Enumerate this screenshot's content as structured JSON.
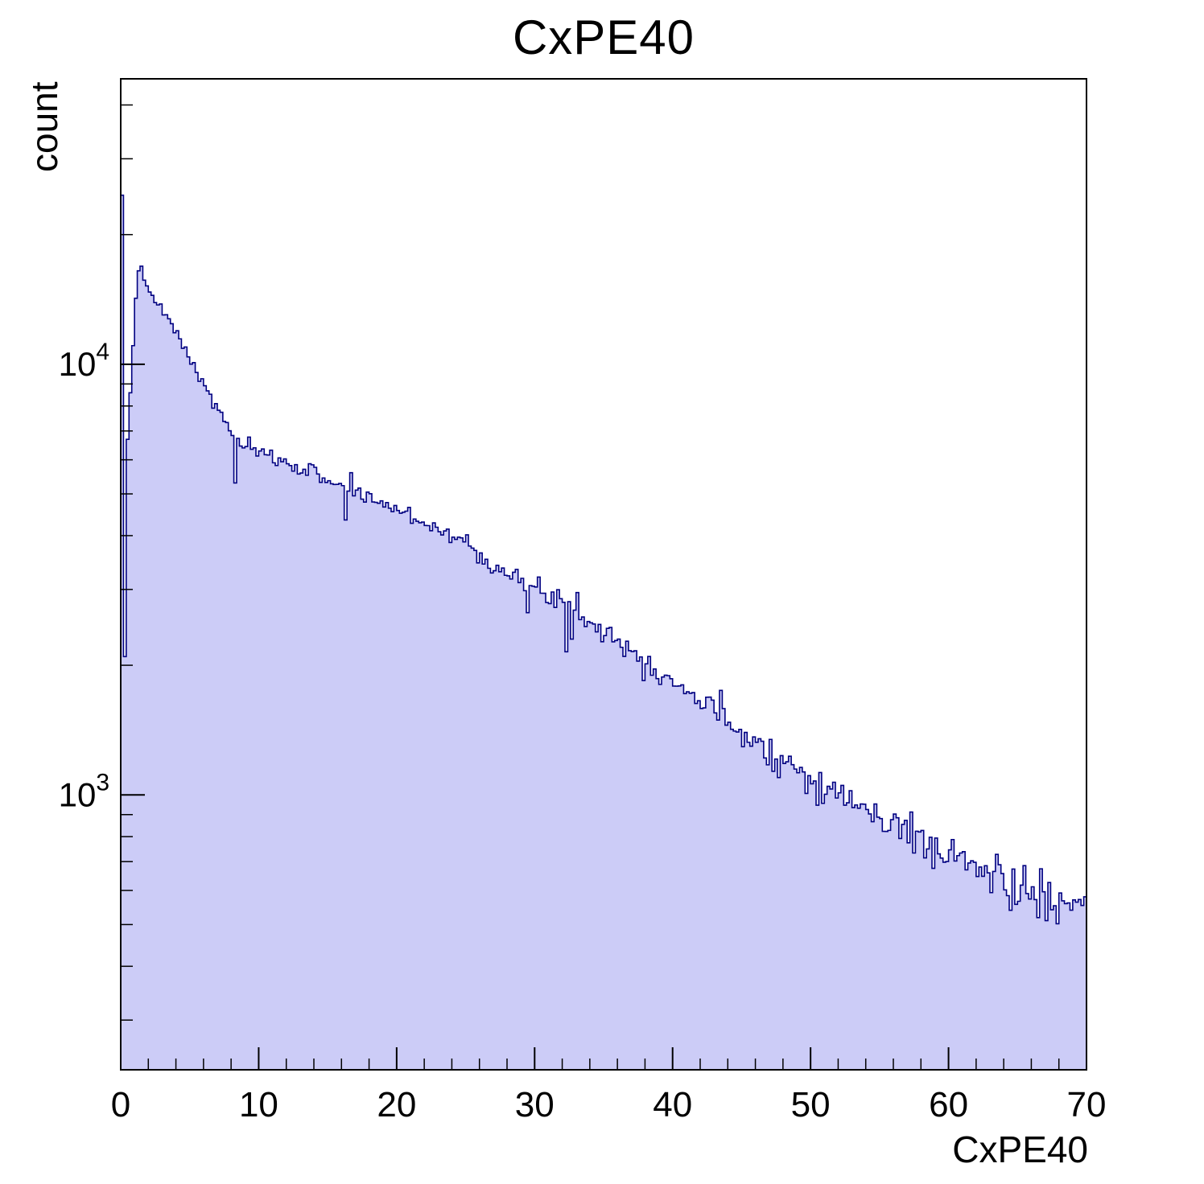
{
  "title": "CxPE40",
  "axes": {
    "x": {
      "label": "CxPE40",
      "min": 0,
      "max": 70,
      "major_ticks": [
        {
          "value": 0,
          "label": "0"
        },
        {
          "value": 10,
          "label": "10"
        },
        {
          "value": 20,
          "label": "20"
        },
        {
          "value": 30,
          "label": "30"
        },
        {
          "value": 40,
          "label": "40"
        },
        {
          "value": 50,
          "label": "50"
        },
        {
          "value": 60,
          "label": "60"
        },
        {
          "value": 70,
          "label": "70"
        }
      ],
      "minor_step": 2
    },
    "y": {
      "label": "count",
      "scale": "log",
      "min": 230,
      "max": 46000,
      "major_ticks": [
        {
          "value": 1000,
          "label_base": "10",
          "label_exp": "3"
        },
        {
          "value": 10000,
          "label_base": "10",
          "label_exp": "4"
        }
      ]
    }
  },
  "style": {
    "fill_color": "#ccccf7",
    "line_color": "#000080",
    "axis_color": "#000000",
    "background": "#ffffff"
  },
  "chart_data": {
    "type": "histogram",
    "series_name": "CxPE40",
    "title": "CxPE40",
    "xlabel": "CxPE40",
    "ylabel": "count",
    "x_range": [
      0,
      70
    ],
    "bin_width": 0.2,
    "y_scale": "log",
    "ylim": [
      230,
      46000
    ],
    "description": "Steeply falling spectrum: narrow spike ~2.4e4 in first bin near 0, dip to ~2e3, broad peak ~1.75e4 near x=1.4, then smooth quasi-exponential decay to ~5e2 at x=70 with Poisson-like bin fluctuations.",
    "control_points": [
      [
        0.0,
        300
      ],
      [
        0.1,
        24000
      ],
      [
        0.2,
        7000
      ],
      [
        0.3,
        2100
      ],
      [
        0.45,
        6500
      ],
      [
        0.6,
        7500
      ],
      [
        0.8,
        9800
      ],
      [
        1.0,
        12500
      ],
      [
        1.2,
        15800
      ],
      [
        1.4,
        17500
      ],
      [
        1.6,
        16800
      ],
      [
        1.8,
        15200
      ],
      [
        2.0,
        14600
      ],
      [
        2.5,
        14000
      ],
      [
        3.0,
        13300
      ],
      [
        3.5,
        12600
      ],
      [
        4.0,
        11900
      ],
      [
        4.5,
        11100
      ],
      [
        5.0,
        10300
      ],
      [
        5.5,
        9600
      ],
      [
        6.0,
        8900
      ],
      [
        6.5,
        8400
      ],
      [
        7.0,
        7900
      ],
      [
        7.5,
        7400
      ],
      [
        8.0,
        7000
      ],
      [
        8.6,
        6600
      ],
      [
        9.0,
        6450
      ],
      [
        10.0,
        6200
      ],
      [
        11.0,
        6050
      ],
      [
        12.0,
        5900
      ],
      [
        13.0,
        5750
      ],
      [
        14.0,
        5600
      ],
      [
        15.0,
        5400
      ],
      [
        16.0,
        5250
      ],
      [
        17.0,
        5050
      ],
      [
        18.0,
        4900
      ],
      [
        19.0,
        4750
      ],
      [
        20.0,
        4600
      ],
      [
        21.0,
        4450
      ],
      [
        22.0,
        4300
      ],
      [
        23.0,
        4150
      ],
      [
        24.0,
        4000
      ],
      [
        25.0,
        3850
      ],
      [
        26.0,
        3650
      ],
      [
        27.0,
        3450
      ],
      [
        28.0,
        3250
      ],
      [
        29.0,
        3100
      ],
      [
        30.0,
        3000
      ],
      [
        31.0,
        2950
      ],
      [
        32.0,
        2850
      ],
      [
        33.0,
        2700
      ],
      [
        34.0,
        2550
      ],
      [
        35.0,
        2400
      ],
      [
        36.0,
        2300
      ],
      [
        37.0,
        2150
      ],
      [
        38.0,
        2050
      ],
      [
        39.0,
        1950
      ],
      [
        40.0,
        1850
      ],
      [
        41.0,
        1750
      ],
      [
        42.0,
        1650
      ],
      [
        43.0,
        1570
      ],
      [
        44.0,
        1490
      ],
      [
        45.0,
        1410
      ],
      [
        46.0,
        1340
      ],
      [
        47.0,
        1270
      ],
      [
        48.0,
        1200
      ],
      [
        49.0,
        1150
      ],
      [
        50.0,
        1100
      ],
      [
        51.0,
        1050
      ],
      [
        52.0,
        1000
      ],
      [
        53.0,
        960
      ],
      [
        54.0,
        920
      ],
      [
        55.0,
        880
      ],
      [
        56.0,
        850
      ],
      [
        57.0,
        820
      ],
      [
        58.0,
        790
      ],
      [
        59.0,
        760
      ],
      [
        60.0,
        730
      ],
      [
        61.0,
        700
      ],
      [
        62.0,
        680
      ],
      [
        63.0,
        650
      ],
      [
        64.0,
        630
      ],
      [
        65.0,
        610
      ],
      [
        66.0,
        590
      ],
      [
        67.0,
        570
      ],
      [
        68.0,
        550
      ],
      [
        69.0,
        530
      ],
      [
        70.0,
        520
      ]
    ],
    "anomalies": [
      [
        8.3,
        5300
      ],
      [
        16.4,
        4350
      ],
      [
        16.6,
        5600
      ],
      [
        29.5,
        2650
      ],
      [
        32.3,
        2150
      ],
      [
        32.7,
        2300
      ],
      [
        33.1,
        2950
      ],
      [
        69.9,
        580
      ]
    ],
    "noise": {
      "seed": 7,
      "rel_scale": 1.6
    }
  }
}
